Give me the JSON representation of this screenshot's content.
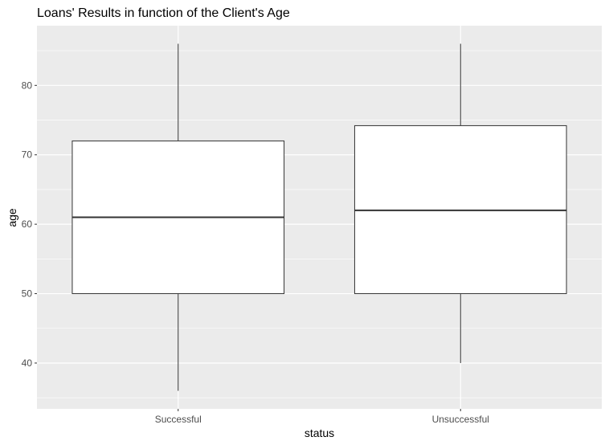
{
  "chart_data": {
    "type": "boxplot",
    "title": "Loans' Results in function of the Client's Age",
    "xlabel": "status",
    "ylabel": "age",
    "categories": [
      "Successful",
      "Unsuccessful"
    ],
    "boxes": [
      {
        "category": "Successful",
        "whisker_low": 36,
        "q1": 50,
        "median": 61,
        "q3": 72,
        "whisker_high": 86
      },
      {
        "category": "Unsuccessful",
        "whisker_low": 40,
        "q1": 50,
        "median": 62,
        "q3": 74.2,
        "whisker_high": 86
      }
    ],
    "y_ticks": [
      40,
      50,
      60,
      70,
      80
    ],
    "ylim": [
      33.4,
      88.6
    ],
    "grid": true,
    "colors": {
      "panel": "#ebebeb",
      "grid_major": "#ffffff",
      "box_fill": "#ffffff",
      "box_line": "#333333",
      "tick_text": "#4d4d4d"
    }
  }
}
